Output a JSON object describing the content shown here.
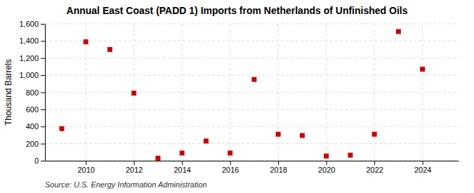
{
  "chart_data": {
    "type": "scatter",
    "title": "Annual East Coast (PADD 1) Imports from Netherlands of Unfinished Oils",
    "ylabel": "Thousand Barrels",
    "source": "Source: U.S. Energy Information Administration",
    "x": [
      2009,
      2010,
      2011,
      2012,
      2013,
      2014,
      2015,
      2016,
      2017,
      2018,
      2019,
      2020,
      2021,
      2022,
      2023,
      2024
    ],
    "values": [
      375,
      1390,
      1300,
      790,
      30,
      90,
      230,
      90,
      950,
      310,
      295,
      55,
      65,
      310,
      1510,
      1070
    ],
    "color": "#cc0000",
    "marker": "square",
    "xlim": [
      2008.3,
      2025.5
    ],
    "xticks": [
      2010,
      2012,
      2014,
      2016,
      2018,
      2020,
      2022,
      2024
    ],
    "ylim": [
      0,
      1600
    ],
    "yticks": [
      0,
      200,
      400,
      600,
      800,
      {
        "value": 1000,
        "label": "1,000"
      },
      {
        "value": 1200,
        "label": "1,200"
      },
      {
        "value": 1400,
        "label": "1,400"
      },
      {
        "value": 1600,
        "label": "1,600"
      }
    ],
    "grid": true
  }
}
